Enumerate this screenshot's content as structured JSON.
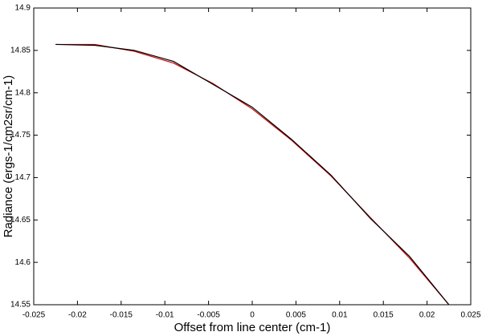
{
  "chart_data": {
    "type": "line",
    "x_label": "Offset from line center (cm-1)",
    "y_label": "Radiance (ergs-1/cm2sr/cm-1)",
    "x": [
      -0.0225,
      -0.018,
      -0.0135,
      -0.009,
      -0.0045,
      0,
      0.0045,
      0.009,
      0.0135,
      0.018,
      0.0225
    ],
    "series": [
      {
        "color": "#cc0000",
        "values": [
          14.857,
          14.857,
          14.849,
          14.835,
          14.811,
          14.781,
          14.744,
          14.702,
          14.653,
          14.605,
          14.55
        ]
      },
      {
        "color": "#000000",
        "values": [
          14.857,
          14.856,
          14.85,
          14.837,
          14.81,
          14.783,
          14.745,
          14.703,
          14.652,
          14.607,
          14.55
        ]
      }
    ],
    "xlim": [
      -0.025,
      0.025
    ],
    "xticks": [
      -0.025,
      -0.02,
      -0.015,
      -0.01,
      -0.005,
      0,
      0.005,
      0.01,
      0.015,
      0.02,
      0.025
    ],
    "ylim": [
      14.55,
      14.9
    ],
    "yticks": [
      14.55,
      14.6,
      14.65,
      14.7,
      14.75,
      14.8,
      14.85,
      14.9
    ],
    "grid": false
  }
}
